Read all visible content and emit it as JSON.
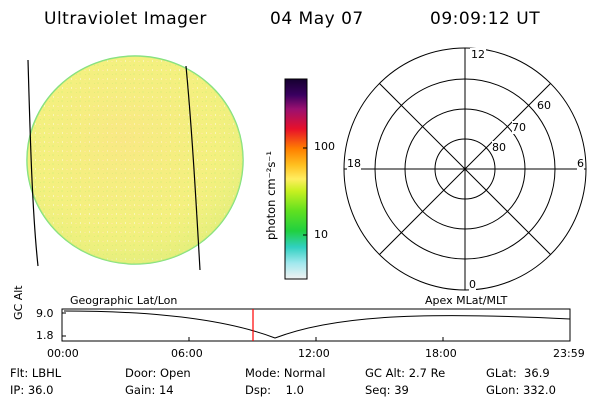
{
  "header": {
    "title": "Ultraviolet Imager",
    "date": "04 May 07",
    "time": "09:09:12 UT"
  },
  "colorbar": {
    "unit_label": "photon cm⁻²s⁻¹",
    "ticks": [
      "100",
      "10"
    ]
  },
  "polar_plot": {
    "mlt_labels": {
      "top": "12",
      "right": "6",
      "bottom": "0",
      "left": "18"
    },
    "lat_labels": [
      "60",
      "70",
      "80"
    ]
  },
  "panel_labels": {
    "left": "Geographic Lat/Lon",
    "right": "Apex MLat/MLT"
  },
  "altitude_plot": {
    "ylabel": "GC Alt",
    "yticks": [
      "9.0",
      "1.8"
    ],
    "xticks": [
      "00:00",
      "06:00",
      "12:00",
      "18:00",
      "23:59"
    ]
  },
  "info": {
    "row1": [
      "Flt: LBHL",
      "Door: Open",
      "Mode: Normal",
      "GC Alt: 2.7 Re",
      "GLat:  36.9"
    ],
    "row2": [
      "IP: 36.0",
      "Gain: 14",
      "Dsp:    1.0",
      "Seq: 39",
      "GLon: 332.0"
    ]
  },
  "colors": {
    "disk_fill": "#f2f080",
    "disk_edge": "#7ee07e",
    "marker": "#ff0000"
  }
}
